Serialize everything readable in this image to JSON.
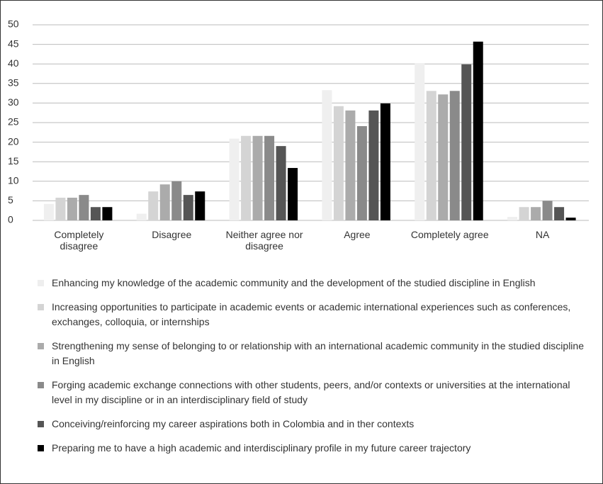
{
  "chart_data": {
    "type": "bar",
    "categories": [
      "Completely disagree",
      "Disagree",
      "Neither agree nor disagree",
      "Agree",
      "Completely agree",
      "NA"
    ],
    "series": [
      {
        "name": "Enhancing my knowledge of the academic community and the development of the studied discipline in English",
        "color": "#efefef",
        "values": [
          4.2,
          1.7,
          20.9,
          33.3,
          40.2,
          0.9
        ]
      },
      {
        "name": "Increasing opportunities to participate in academic events or academic international experiences such as conferences, exchanges, colloquia, or internships",
        "color": "#d4d4d4",
        "values": [
          5.8,
          7.4,
          21.6,
          29.2,
          33.1,
          3.4
        ]
      },
      {
        "name": "Strengthening my sense of belonging to or relationship with an international academic community in the studied discipline in English",
        "color": "#ababab",
        "values": [
          5.8,
          9.2,
          21.6,
          28.1,
          32.2,
          3.4
        ]
      },
      {
        "name": "Forging academic exchange connections with other students, peers, and/or contexts or universities at the international level in my discipline or in an interdisciplinary field of study",
        "color": "#8a8a8a",
        "values": [
          6.5,
          10,
          21.6,
          24.1,
          33.1,
          5
        ]
      },
      {
        "name": "Conceiving/reinforcing my career aspirations both in Colombia and in ther contexts",
        "color": "#555555",
        "values": [
          3.4,
          6.5,
          19,
          28.1,
          39.9,
          3.4
        ]
      },
      {
        "name": "Preparing me to have a high academic and interdisciplinary profile in my future career trajectory",
        "color": "#000000",
        "values": [
          3.4,
          7.4,
          13.4,
          29.9,
          45.7,
          0.7
        ]
      }
    ],
    "ylim": [
      0,
      50
    ],
    "yticks": [
      0,
      5,
      10,
      15,
      20,
      25,
      30,
      35,
      40,
      45,
      50
    ],
    "grid": true,
    "legend": "bottom"
  }
}
